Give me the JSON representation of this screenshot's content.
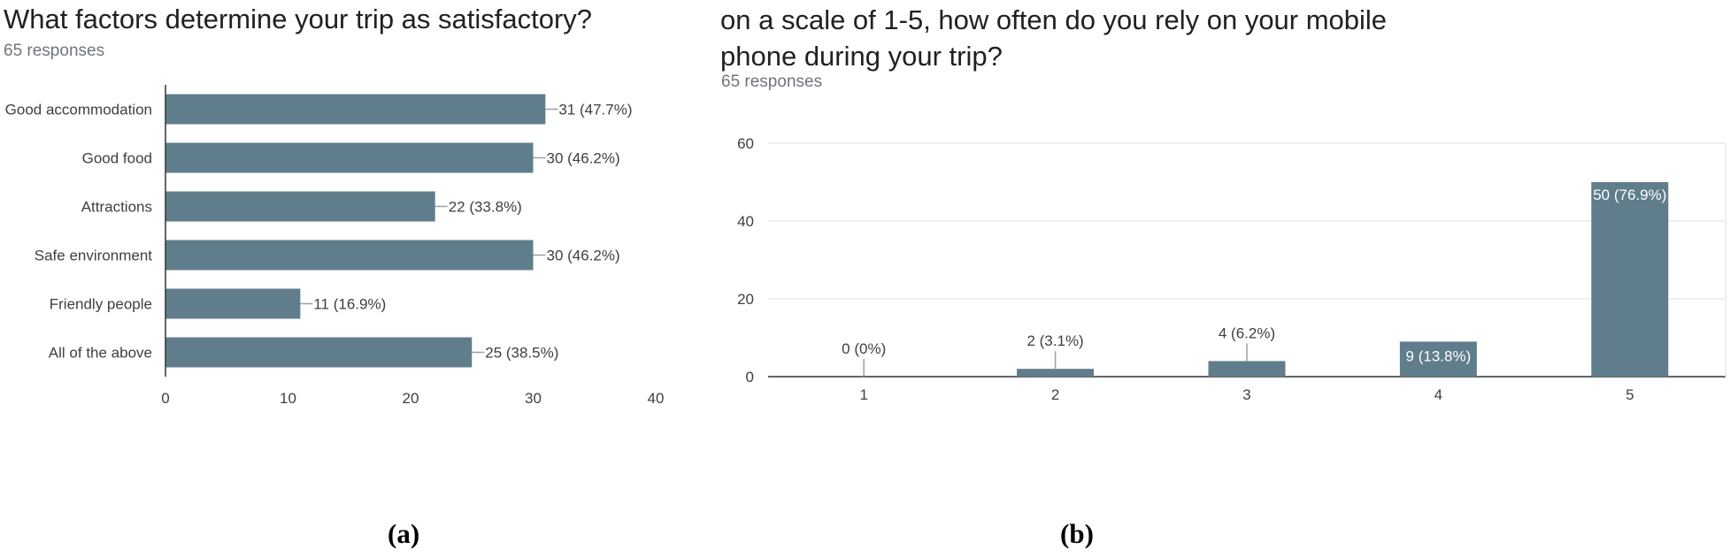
{
  "panel_a": {
    "title": "What factors determine your trip as satisfactory?",
    "responses": "65 responses",
    "caption": "(a)"
  },
  "panel_b": {
    "title": "on a scale of 1-5, how often do you rely on your mobile phone during your trip?",
    "responses": "65 responses",
    "caption": "(b)"
  },
  "colors": {
    "bar": "#607d8b",
    "axis": "#333333",
    "grid": "#e0e0e0",
    "label": "#3c4043",
    "subtitle": "#70757a"
  },
  "chart_data": [
    {
      "type": "bar",
      "orientation": "horizontal",
      "title": "What factors determine your trip as satisfactory?",
      "categories": [
        "Good accommodation",
        "Good food",
        "Attractions",
        "Safe environment",
        "Friendly people",
        "All of the above"
      ],
      "values": [
        31,
        30,
        22,
        30,
        11,
        25
      ],
      "data_labels": [
        "31 (47.7%)",
        "30 (46.2%)",
        "22 (33.8%)",
        "30 (46.2%)",
        "11 (16.9%)",
        "25 (38.5%)"
      ],
      "xlim": [
        0,
        40
      ],
      "ticks": [
        0,
        10,
        20,
        30,
        40
      ],
      "grid": false
    },
    {
      "type": "bar",
      "orientation": "vertical",
      "title": "on a scale of 1-5, how often do you rely on your mobile phone during your trip?",
      "categories": [
        "1",
        "2",
        "3",
        "4",
        "5"
      ],
      "values": [
        0,
        2,
        4,
        9,
        50
      ],
      "data_labels": [
        "0 (0%)",
        "2 (3.1%)",
        "4 (6.2%)",
        "9 (13.8%)",
        "50 (76.9%)"
      ],
      "ylim": [
        0,
        60
      ],
      "ticks": [
        0,
        20,
        40,
        60
      ],
      "grid": true
    }
  ]
}
